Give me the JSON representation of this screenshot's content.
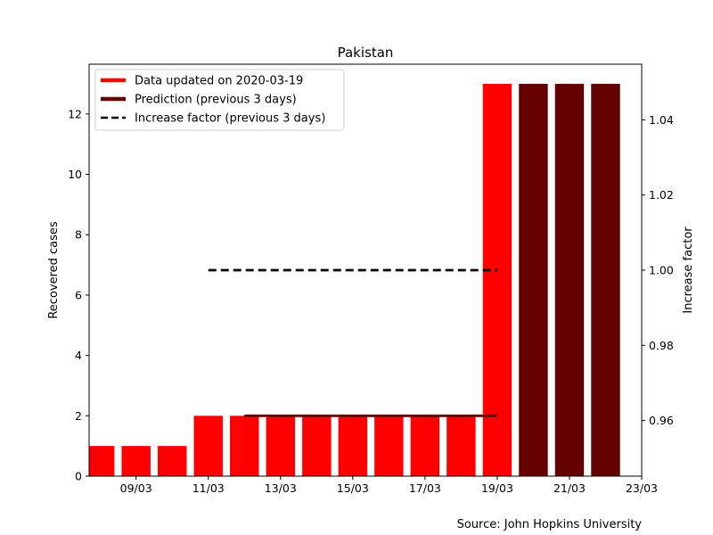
{
  "chart_data": {
    "type": "bar",
    "title": "Pakistan",
    "ylabel": "Recovered cases",
    "y2label": "Increase factor",
    "source": "Source: John Hopkins University",
    "x_tick_labels": [
      "09/03",
      "11/03",
      "13/03",
      "15/03",
      "17/03",
      "19/03",
      "21/03",
      "23/03"
    ],
    "ylim": [
      0,
      13.65
    ],
    "y_ticks": [
      0,
      2,
      4,
      6,
      8,
      10,
      12
    ],
    "y2lim": [
      0.9452,
      1.0548
    ],
    "y2_ticks": [
      0.96,
      0.98,
      1.0,
      1.02,
      1.04
    ],
    "series": [
      {
        "name": "Data updated on 2020-03-19",
        "color": "#ff0000",
        "categories": [
          "08/03",
          "09/03",
          "10/03",
          "11/03",
          "12/03",
          "13/03",
          "14/03",
          "15/03",
          "16/03",
          "17/03",
          "18/03",
          "19/03"
        ],
        "values": [
          1,
          1,
          1,
          2,
          2,
          2,
          2,
          2,
          2,
          2,
          2,
          13
        ]
      },
      {
        "name": "Prediction (previous 3 days)",
        "color": "#640000",
        "categories": [
          "20/03",
          "21/03",
          "22/03"
        ],
        "values": [
          13,
          13,
          13
        ]
      }
    ],
    "lines": [
      {
        "name": "Increase factor (previous 3 days)",
        "style": "dashed",
        "color": "#000000",
        "axis": "right",
        "from": "11/03",
        "to": "19/03",
        "value": 1.0
      },
      {
        "style": "solid",
        "color": "#640000",
        "axis": "left",
        "from": "12/03",
        "to": "19/03",
        "value": 2
      }
    ],
    "legend": "top-left"
  }
}
